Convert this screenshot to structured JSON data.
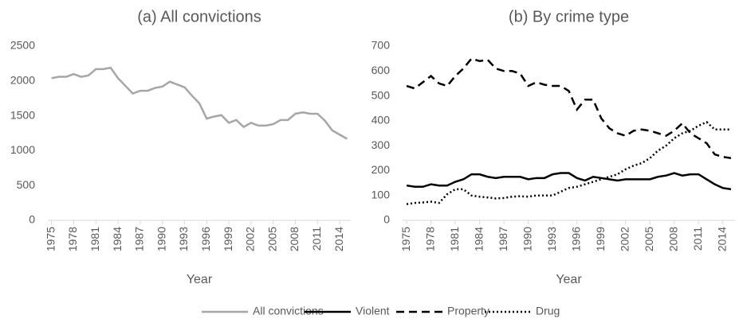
{
  "chart_data": [
    {
      "type": "line",
      "title": "(a) All convictions",
      "x_label": "Year",
      "x": [
        1975,
        1976,
        1977,
        1978,
        1979,
        1980,
        1981,
        1982,
        1983,
        1984,
        1985,
        1986,
        1987,
        1988,
        1989,
        1990,
        1991,
        1992,
        1993,
        1994,
        1995,
        1996,
        1997,
        1998,
        1999,
        2000,
        2001,
        2002,
        2003,
        2004,
        2005,
        2006,
        2007,
        2008,
        2009,
        2010,
        2011,
        2012,
        2013,
        2014,
        2015
      ],
      "xlim": [
        1975,
        2015
      ],
      "xticks": [
        1975,
        1978,
        1981,
        1984,
        1987,
        1990,
        1993,
        1996,
        1999,
        2002,
        2005,
        2008,
        2011,
        2014
      ],
      "ylim": [
        0,
        2500
      ],
      "yticks": [
        0,
        500,
        1000,
        1500,
        2000,
        2500
      ],
      "grid": false,
      "series": [
        {
          "name": "All convictions",
          "color": "#a6a6a6",
          "dash": "solid",
          "values": [
            2040,
            2060,
            2060,
            2100,
            2060,
            2080,
            2170,
            2170,
            2190,
            2040,
            1930,
            1820,
            1860,
            1860,
            1900,
            1920,
            1990,
            1950,
            1910,
            1790,
            1680,
            1460,
            1490,
            1510,
            1400,
            1440,
            1340,
            1400,
            1360,
            1360,
            1380,
            1440,
            1440,
            1530,
            1550,
            1530,
            1530,
            1430,
            1290,
            1230,
            1170
          ]
        }
      ]
    },
    {
      "type": "line",
      "title": "(b) By crime type",
      "x_label": "Year",
      "x": [
        1975,
        1976,
        1977,
        1978,
        1979,
        1980,
        1981,
        1982,
        1983,
        1984,
        1985,
        1986,
        1987,
        1988,
        1989,
        1990,
        1991,
        1992,
        1993,
        1994,
        1995,
        1996,
        1997,
        1998,
        1999,
        2000,
        2001,
        2002,
        2003,
        2004,
        2005,
        2006,
        2007,
        2008,
        2009,
        2010,
        2011,
        2012,
        2013,
        2014,
        2015
      ],
      "xlim": [
        1975,
        2015
      ],
      "xticks": [
        1975,
        1978,
        1981,
        1984,
        1987,
        1990,
        1993,
        1996,
        1999,
        2002,
        2005,
        2008,
        2011,
        2014
      ],
      "ylim": [
        0,
        700
      ],
      "yticks": [
        0,
        100,
        200,
        300,
        400,
        500,
        600,
        700
      ],
      "grid": false,
      "series": [
        {
          "name": "Violent",
          "color": "#000000",
          "dash": "solid",
          "values": [
            140,
            135,
            135,
            145,
            140,
            140,
            155,
            165,
            185,
            185,
            175,
            170,
            175,
            175,
            175,
            165,
            170,
            170,
            185,
            190,
            190,
            170,
            160,
            175,
            170,
            165,
            160,
            165,
            165,
            165,
            165,
            175,
            180,
            190,
            180,
            185,
            185,
            165,
            145,
            130,
            125
          ]
        },
        {
          "name": "Property",
          "color": "#000000",
          "dash": "dashed",
          "values": [
            540,
            530,
            555,
            580,
            550,
            540,
            580,
            610,
            650,
            640,
            645,
            610,
            600,
            600,
            590,
            540,
            555,
            545,
            540,
            540,
            520,
            445,
            485,
            485,
            410,
            370,
            350,
            340,
            360,
            365,
            360,
            350,
            340,
            360,
            390,
            350,
            330,
            310,
            265,
            255,
            250
          ]
        },
        {
          "name": "Drug",
          "color": "#000000",
          "dash": "dotted",
          "values": [
            65,
            70,
            72,
            75,
            70,
            105,
            125,
            125,
            100,
            95,
            92,
            88,
            90,
            95,
            97,
            95,
            100,
            100,
            100,
            115,
            130,
            135,
            145,
            155,
            165,
            175,
            185,
            205,
            220,
            230,
            250,
            280,
            300,
            330,
            350,
            360,
            380,
            395,
            365,
            365,
            365
          ]
        }
      ]
    }
  ]
}
